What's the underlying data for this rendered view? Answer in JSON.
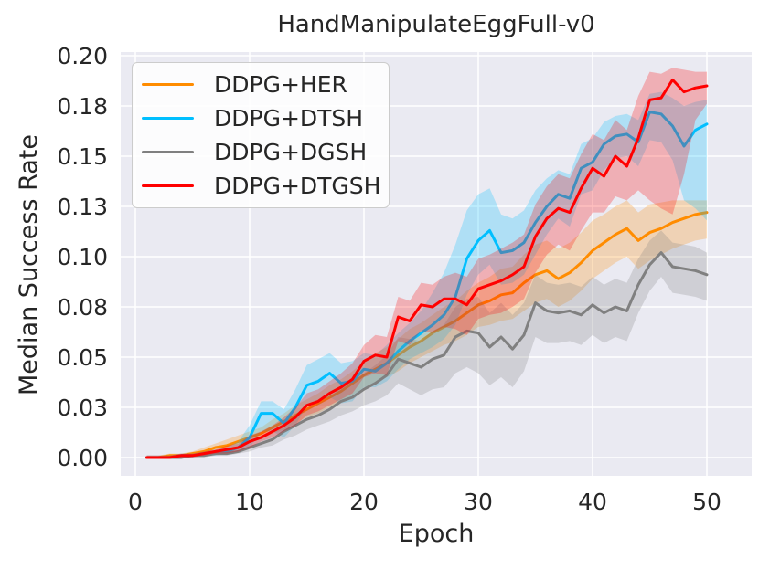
{
  "figure": {
    "background": "#ffffff",
    "text_color": "#262626"
  },
  "chart_data": {
    "type": "line",
    "title": "HandManipulateEggFull-v0",
    "xlabel": "Epoch",
    "ylabel": "Median Success Rate",
    "grid": true,
    "plot_background": "#eaeaf2",
    "grid_color": "#ffffff",
    "band_alpha": 0.25,
    "line_width": 3,
    "legend_position": "upper left",
    "xlim": [
      -1.28,
      53.92
    ],
    "ylim": [
      -0.0091,
      0.2018
    ],
    "x_ticks": {
      "values": [
        0,
        10,
        20,
        30,
        40,
        50
      ],
      "labels": [
        "0",
        "10",
        "20",
        "30",
        "40",
        "50"
      ]
    },
    "y_ticks": {
      "values": [
        0.0,
        0.025,
        0.05,
        0.075,
        0.1,
        0.125,
        0.15,
        0.175,
        0.2
      ],
      "labels": [
        "0.00",
        "0.03",
        "0.05",
        "0.08",
        "0.10",
        "0.13",
        "0.15",
        "0.18",
        "0.20"
      ]
    },
    "x": [
      1,
      2,
      3,
      4,
      5,
      6,
      7,
      8,
      9,
      10,
      11,
      12,
      13,
      14,
      15,
      16,
      17,
      18,
      19,
      20,
      21,
      22,
      23,
      24,
      25,
      26,
      27,
      28,
      29,
      30,
      31,
      32,
      33,
      34,
      35,
      36,
      37,
      38,
      39,
      40,
      41,
      42,
      43,
      44,
      45,
      46,
      47,
      48,
      49,
      50
    ],
    "series": [
      {
        "name": "DDPG+HER",
        "color": "#ff8c00",
        "values": [
          0.0,
          0.0,
          0.001,
          0.001,
          0.002,
          0.003,
          0.005,
          0.006,
          0.008,
          0.01,
          0.012,
          0.015,
          0.018,
          0.021,
          0.024,
          0.027,
          0.03,
          0.033,
          0.037,
          0.041,
          0.044,
          0.047,
          0.051,
          0.055,
          0.058,
          0.062,
          0.065,
          0.068,
          0.072,
          0.076,
          0.078,
          0.081,
          0.082,
          0.087,
          0.091,
          0.093,
          0.089,
          0.092,
          0.097,
          0.103,
          0.107,
          0.111,
          0.114,
          0.108,
          0.112,
          0.114,
          0.117,
          0.119,
          0.121,
          0.122
        ],
        "band_lower": [
          0.0,
          0.0,
          0.0,
          0.0,
          0.001,
          0.002,
          0.003,
          0.004,
          0.006,
          0.008,
          0.009,
          0.012,
          0.014,
          0.017,
          0.02,
          0.022,
          0.025,
          0.028,
          0.031,
          0.035,
          0.037,
          0.04,
          0.043,
          0.047,
          0.05,
          0.053,
          0.056,
          0.058,
          0.061,
          0.065,
          0.066,
          0.068,
          0.069,
          0.073,
          0.077,
          0.079,
          0.075,
          0.078,
          0.083,
          0.089,
          0.093,
          0.097,
          0.1,
          0.094,
          0.098,
          0.101,
          0.104,
          0.106,
          0.108,
          0.109
        ],
        "band_upper": [
          0.001,
          0.001,
          0.002,
          0.002,
          0.003,
          0.005,
          0.007,
          0.009,
          0.011,
          0.013,
          0.015,
          0.019,
          0.022,
          0.026,
          0.029,
          0.032,
          0.036,
          0.039,
          0.043,
          0.048,
          0.052,
          0.055,
          0.059,
          0.064,
          0.067,
          0.071,
          0.075,
          0.078,
          0.083,
          0.087,
          0.09,
          0.094,
          0.095,
          0.101,
          0.106,
          0.108,
          0.104,
          0.107,
          0.112,
          0.118,
          0.121,
          0.125,
          0.128,
          0.122,
          0.126,
          0.127,
          0.128,
          0.128,
          0.128,
          0.128
        ]
      },
      {
        "name": "DDPG+DTSH",
        "color": "#00bfff",
        "values": [
          0.0,
          0.0,
          0.0,
          0.001,
          0.001,
          0.002,
          0.002,
          0.003,
          0.005,
          0.01,
          0.022,
          0.022,
          0.017,
          0.025,
          0.036,
          0.038,
          0.042,
          0.037,
          0.038,
          0.044,
          0.043,
          0.047,
          0.053,
          0.058,
          0.062,
          0.066,
          0.071,
          0.08,
          0.099,
          0.108,
          0.113,
          0.102,
          0.103,
          0.107,
          0.117,
          0.125,
          0.131,
          0.129,
          0.144,
          0.147,
          0.156,
          0.16,
          0.161,
          0.157,
          0.172,
          0.171,
          0.165,
          0.155,
          0.163,
          0.166
        ],
        "band_lower": [
          0.0,
          0.0,
          0.0,
          0.0,
          0.0,
          0.001,
          0.001,
          0.002,
          0.003,
          0.005,
          0.013,
          0.013,
          0.01,
          0.016,
          0.026,
          0.028,
          0.03,
          0.027,
          0.028,
          0.035,
          0.035,
          0.038,
          0.044,
          0.049,
          0.052,
          0.055,
          0.059,
          0.066,
          0.081,
          0.091,
          0.096,
          0.086,
          0.087,
          0.091,
          0.101,
          0.111,
          0.119,
          0.115,
          0.131,
          0.133,
          0.143,
          0.149,
          0.15,
          0.145,
          0.158,
          0.157,
          0.148,
          0.128,
          0.124,
          0.118
        ],
        "band_upper": [
          0.001,
          0.001,
          0.001,
          0.002,
          0.002,
          0.003,
          0.004,
          0.005,
          0.008,
          0.016,
          0.028,
          0.028,
          0.024,
          0.034,
          0.046,
          0.049,
          0.052,
          0.047,
          0.048,
          0.052,
          0.051,
          0.056,
          0.062,
          0.067,
          0.073,
          0.082,
          0.092,
          0.106,
          0.123,
          0.131,
          0.134,
          0.121,
          0.119,
          0.123,
          0.133,
          0.139,
          0.143,
          0.141,
          0.156,
          0.159,
          0.167,
          0.17,
          0.171,
          0.168,
          0.181,
          0.182,
          0.179,
          0.175,
          0.177,
          0.178
        ]
      },
      {
        "name": "DDPG+DGSH",
        "color": "#808080",
        "values": [
          0.0,
          0.0,
          0.0,
          0.0,
          0.001,
          0.001,
          0.002,
          0.002,
          0.003,
          0.005,
          0.007,
          0.009,
          0.013,
          0.016,
          0.019,
          0.021,
          0.024,
          0.028,
          0.03,
          0.034,
          0.037,
          0.041,
          0.049,
          0.047,
          0.045,
          0.049,
          0.051,
          0.06,
          0.063,
          0.062,
          0.055,
          0.06,
          0.054,
          0.061,
          0.077,
          0.073,
          0.072,
          0.073,
          0.071,
          0.076,
          0.072,
          0.075,
          0.073,
          0.086,
          0.096,
          0.102,
          0.095,
          0.094,
          0.093,
          0.091
        ],
        "band_lower": [
          0.0,
          0.0,
          0.0,
          0.0,
          0.0,
          0.0,
          0.001,
          0.001,
          0.002,
          0.003,
          0.005,
          0.006,
          0.009,
          0.011,
          0.014,
          0.016,
          0.018,
          0.021,
          0.023,
          0.026,
          0.028,
          0.031,
          0.037,
          0.034,
          0.031,
          0.034,
          0.035,
          0.042,
          0.045,
          0.042,
          0.036,
          0.04,
          0.035,
          0.043,
          0.06,
          0.057,
          0.057,
          0.058,
          0.056,
          0.061,
          0.057,
          0.06,
          0.058,
          0.072,
          0.083,
          0.09,
          0.082,
          0.081,
          0.08,
          0.078
        ],
        "band_upper": [
          0.001,
          0.001,
          0.001,
          0.001,
          0.002,
          0.002,
          0.003,
          0.004,
          0.005,
          0.008,
          0.01,
          0.012,
          0.017,
          0.021,
          0.024,
          0.027,
          0.03,
          0.035,
          0.038,
          0.042,
          0.046,
          0.051,
          0.06,
          0.059,
          0.058,
          0.063,
          0.066,
          0.075,
          0.079,
          0.08,
          0.072,
          0.077,
          0.071,
          0.077,
          0.091,
          0.087,
          0.086,
          0.087,
          0.085,
          0.09,
          0.086,
          0.089,
          0.087,
          0.099,
          0.108,
          0.113,
          0.107,
          0.106,
          0.105,
          0.102
        ]
      },
      {
        "name": "DDPG+DTGSH",
        "color": "#ff0000",
        "values": [
          0.0,
          0.0,
          0.0,
          0.001,
          0.001,
          0.002,
          0.003,
          0.004,
          0.005,
          0.008,
          0.01,
          0.013,
          0.016,
          0.02,
          0.026,
          0.028,
          0.032,
          0.035,
          0.039,
          0.048,
          0.051,
          0.05,
          0.07,
          0.068,
          0.076,
          0.075,
          0.079,
          0.079,
          0.076,
          0.084,
          0.086,
          0.088,
          0.091,
          0.095,
          0.11,
          0.119,
          0.124,
          0.122,
          0.134,
          0.144,
          0.14,
          0.15,
          0.145,
          0.159,
          0.178,
          0.179,
          0.188,
          0.182,
          0.184,
          0.185
        ],
        "band_lower": [
          0.0,
          0.0,
          0.0,
          0.0,
          0.0,
          0.001,
          0.002,
          0.002,
          0.003,
          0.005,
          0.008,
          0.01,
          0.013,
          0.016,
          0.021,
          0.023,
          0.026,
          0.029,
          0.032,
          0.04,
          0.042,
          0.041,
          0.058,
          0.056,
          0.063,
          0.062,
          0.065,
          0.064,
          0.061,
          0.069,
          0.071,
          0.072,
          0.075,
          0.079,
          0.092,
          0.101,
          0.106,
          0.103,
          0.113,
          0.122,
          0.122,
          0.13,
          0.128,
          0.133,
          0.128,
          0.124,
          0.121,
          0.141,
          0.168,
          0.176
        ],
        "band_upper": [
          0.001,
          0.001,
          0.001,
          0.002,
          0.002,
          0.003,
          0.004,
          0.006,
          0.007,
          0.011,
          0.013,
          0.016,
          0.02,
          0.025,
          0.032,
          0.034,
          0.038,
          0.042,
          0.047,
          0.056,
          0.061,
          0.06,
          0.08,
          0.078,
          0.087,
          0.086,
          0.09,
          0.092,
          0.09,
          0.099,
          0.101,
          0.104,
          0.107,
          0.111,
          0.126,
          0.135,
          0.141,
          0.139,
          0.151,
          0.161,
          0.158,
          0.168,
          0.163,
          0.18,
          0.192,
          0.191,
          0.194,
          0.193,
          0.192,
          0.192
        ]
      }
    ]
  }
}
